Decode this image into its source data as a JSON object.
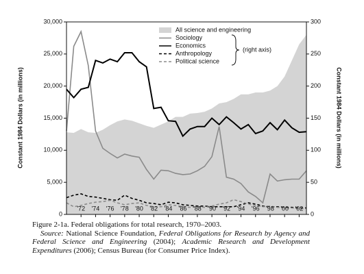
{
  "chart_data": {
    "type": "area-lines",
    "x": [
      1970,
      1971,
      1972,
      1973,
      1974,
      1975,
      1976,
      1977,
      1978,
      1979,
      1980,
      1981,
      1982,
      1983,
      1984,
      1985,
      1986,
      1987,
      1988,
      1989,
      1990,
      1991,
      1992,
      1993,
      1994,
      1995,
      1996,
      1997,
      1998,
      1999,
      2000,
      2001,
      2002,
      2003
    ],
    "xlim": [
      1970,
      2003
    ],
    "xticks": [
      {
        "value": 1972,
        "label": "'72"
      },
      {
        "value": 1974,
        "label": "'74"
      },
      {
        "value": 1976,
        "label": "'76"
      },
      {
        "value": 1978,
        "label": "'78"
      },
      {
        "value": 1980,
        "label": "'80"
      },
      {
        "value": 1982,
        "label": "'82"
      },
      {
        "value": 1984,
        "label": "'84"
      },
      {
        "value": 1986,
        "label": "'86"
      },
      {
        "value": 1988,
        "label": "'88"
      },
      {
        "value": 1990,
        "label": "'90"
      },
      {
        "value": 1992,
        "label": "'92"
      },
      {
        "value": 1994,
        "label": "'94"
      },
      {
        "value": 1996,
        "label": "'96"
      },
      {
        "value": 1998,
        "label": "'98"
      },
      {
        "value": 2000,
        "label": "'00"
      },
      {
        "value": 2002,
        "label": "'02"
      }
    ],
    "ylabel": "Constant 1984 Dollars (in millions)",
    "y2label": "Constant 1984 Dollars (in millions)",
    "ylim": [
      0,
      30000
    ],
    "yticks": [
      {
        "value": 0,
        "label": "0"
      },
      {
        "value": 5000,
        "label": "5,000"
      },
      {
        "value": 10000,
        "label": "10,000"
      },
      {
        "value": 15000,
        "label": "15,000"
      },
      {
        "value": 20000,
        "label": "20,000"
      },
      {
        "value": 25000,
        "label": "25,000"
      },
      {
        "value": 30000,
        "label": "30,000"
      }
    ],
    "y2lim": [
      0,
      300
    ],
    "y2ticks": [
      0,
      50,
      100,
      150,
      200,
      250,
      300
    ],
    "legend_note": "(right axis)",
    "series": [
      {
        "name": "All science and engineering",
        "color": "#d4d4d4",
        "style": "area",
        "axis": "y",
        "values": [
          12800,
          12700,
          13300,
          12800,
          12700,
          13200,
          13900,
          14500,
          14800,
          14600,
          14200,
          13800,
          13500,
          14000,
          14500,
          15200,
          15200,
          15700,
          15800,
          16000,
          16500,
          17300,
          17500,
          18000,
          18700,
          18700,
          19000,
          19000,
          19300,
          20000,
          21500,
          24000,
          26500,
          28000
        ]
      },
      {
        "name": "Sociology",
        "color": "#8a8a8a",
        "style": "solid",
        "axis": "y2",
        "values": [
          130,
          262,
          285,
          232,
          130,
          103,
          95,
          88,
          94,
          91,
          89,
          70,
          55,
          69,
          68,
          64,
          62,
          63,
          68,
          75,
          90,
          137,
          58,
          55,
          48,
          35,
          28,
          18,
          63,
          52,
          54,
          55,
          55,
          68
        ]
      },
      {
        "name": "Economics",
        "color": "#000000",
        "style": "solid",
        "axis": "y2",
        "values": [
          195,
          182,
          195,
          198,
          240,
          236,
          242,
          238,
          252,
          252,
          238,
          230,
          165,
          167,
          146,
          145,
          122,
          133,
          137,
          137,
          150,
          140,
          152,
          143,
          133,
          140,
          126,
          130,
          143,
          132,
          147,
          135,
          128,
          129
        ]
      },
      {
        "name": "Anthropology",
        "color": "#000000",
        "style": "dashed",
        "axis": "y2",
        "values": [
          26,
          30,
          32,
          28,
          27,
          25,
          23,
          22,
          30,
          25,
          22,
          18,
          17,
          15,
          19,
          18,
          15,
          14,
          13,
          13,
          12,
          12,
          12,
          12,
          15,
          18,
          16,
          13,
          12,
          12,
          11,
          11,
          10,
          10
        ]
      },
      {
        "name": "Political science",
        "color": "#8a8a8a",
        "style": "dashed",
        "axis": "y2",
        "values": [
          18,
          12,
          14,
          17,
          19,
          20,
          22,
          18,
          15,
          17,
          18,
          14,
          12,
          12,
          15,
          14,
          12,
          11,
          12,
          11,
          13,
          16,
          18,
          23,
          20,
          16,
          14,
          12,
          13,
          11,
          10,
          10,
          9,
          9
        ]
      }
    ]
  },
  "caption": {
    "figure": "Figure 2-1a. Federal obligations for total research, 1970–2003.",
    "source": [
      {
        "text": "Source:",
        "italic": true
      },
      {
        "text": " National Science Foundation, ",
        "italic": false
      },
      {
        "text": "Federal Obligations for Research by Agency and Federal Science and Engineering",
        "italic": true
      },
      {
        "text": " (2004); ",
        "italic": false
      },
      {
        "text": "Academic Research and Development Expenditures",
        "italic": true
      },
      {
        "text": " (2006); Census Bureau (for Consumer Price Index).",
        "italic": false
      }
    ]
  }
}
